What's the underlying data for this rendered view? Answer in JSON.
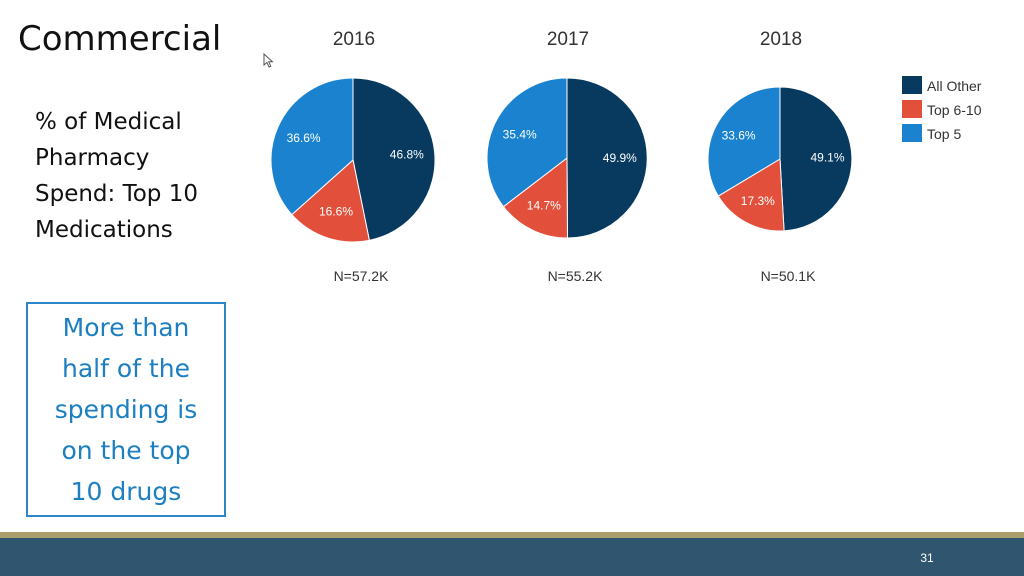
{
  "slide": {
    "title": "Commercial",
    "subtitle": "% of Medical\nPharmacy\nSpend: Top 10\nMedications",
    "callout": "More than\nhalf of the\nspending is\non the top\n10 drugs",
    "page_number": "31"
  },
  "colors": {
    "All Other": "#073a5e",
    "Top 6-10": "#e2503c",
    "Top 5": "#1a82cf"
  },
  "chart_data": {
    "type": "pie",
    "legend": {
      "position": "right",
      "entries": [
        "All Other",
        "Top 6-10",
        "Top 5"
      ]
    },
    "charts": [
      {
        "title": "2016",
        "n_label": "N=57.2K",
        "slices": [
          {
            "name": "All Other",
            "value": 46.8,
            "label": "46.8%"
          },
          {
            "name": "Top 6-10",
            "value": 16.6,
            "label": "16.6%"
          },
          {
            "name": "Top 5",
            "value": 36.6,
            "label": "36.6%"
          }
        ]
      },
      {
        "title": "2017",
        "n_label": "N=55.2K",
        "slices": [
          {
            "name": "All Other",
            "value": 49.9,
            "label": "49.9%"
          },
          {
            "name": "Top 6-10",
            "value": 14.7,
            "label": "14.7%"
          },
          {
            "name": "Top 5",
            "value": 35.4,
            "label": "35.4%"
          }
        ]
      },
      {
        "title": "2018",
        "n_label": "N=50.1K",
        "slices": [
          {
            "name": "All Other",
            "value": 49.1,
            "label": "49.1%"
          },
          {
            "name": "Top 6-10",
            "value": 17.3,
            "label": "17.3%"
          },
          {
            "name": "Top 5",
            "value": 33.6,
            "label": "33.6%"
          }
        ]
      }
    ]
  }
}
